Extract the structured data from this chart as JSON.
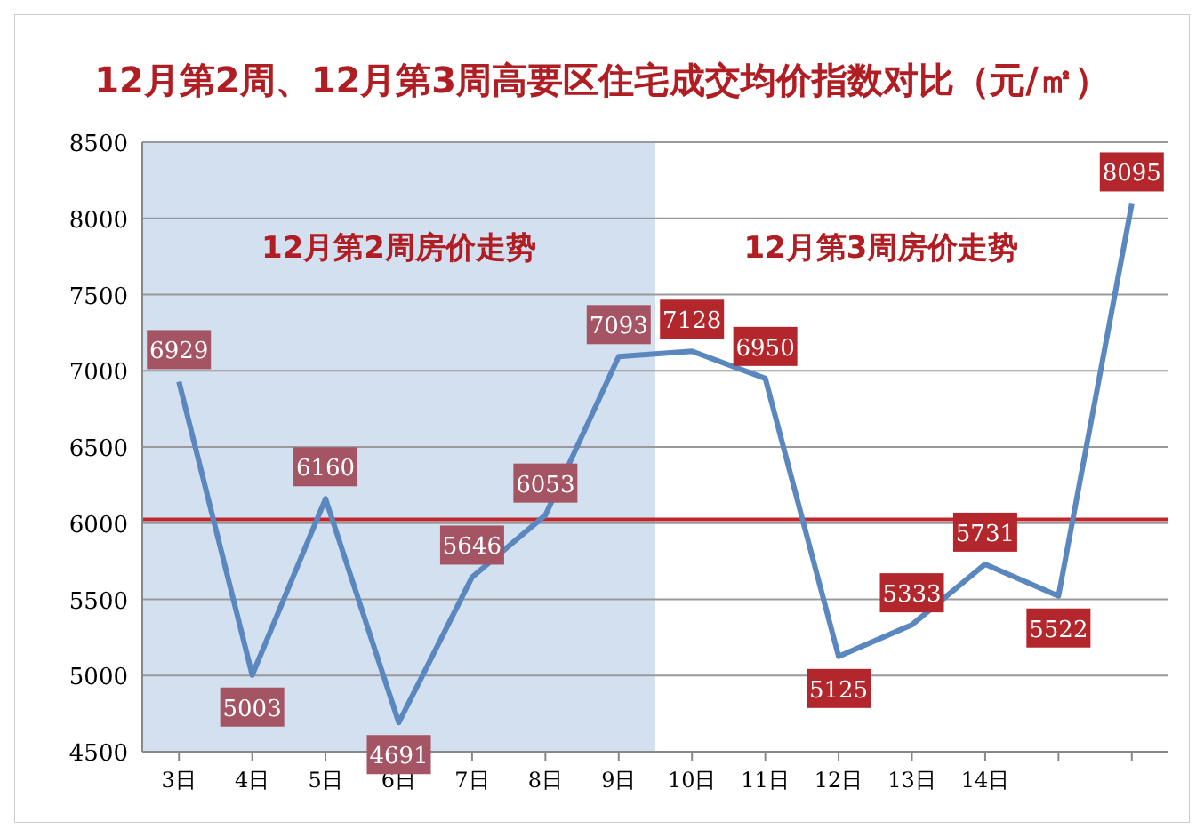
{
  "chart_data": {
    "type": "line",
    "title": "12月第2周、12月第3周高要区住宅成交均价指数对比（元/㎡）",
    "categories": [
      "3日",
      "4日",
      "5日",
      "6日",
      "7日",
      "8日",
      "9日",
      "10日",
      "11日",
      "12日",
      "13日",
      "14日",
      null,
      null
    ],
    "series": [
      {
        "color": "#5b87bf",
        "values": [
          6929,
          5003,
          6160,
          4691,
          5646,
          6053,
          7093,
          7128,
          6950,
          5125,
          5333,
          5731,
          5522,
          8095
        ]
      }
    ],
    "ylim": [
      4500,
      8500
    ],
    "yticks": [
      4500,
      5000,
      5500,
      6000,
      6500,
      7000,
      7500,
      8000,
      8500
    ],
    "grid": "y",
    "data_labels": true,
    "marker": "none",
    "ref_lines": [
      {
        "axis": "y",
        "value": 6025,
        "color": "#c0282d"
      }
    ],
    "bands": [
      {
        "axis": "x",
        "from": "3日",
        "to": "9日",
        "label": "12月第2周房价走势",
        "color": "#d3e0f0"
      }
    ],
    "annotations": [
      "12月第3周房价走势"
    ]
  }
}
